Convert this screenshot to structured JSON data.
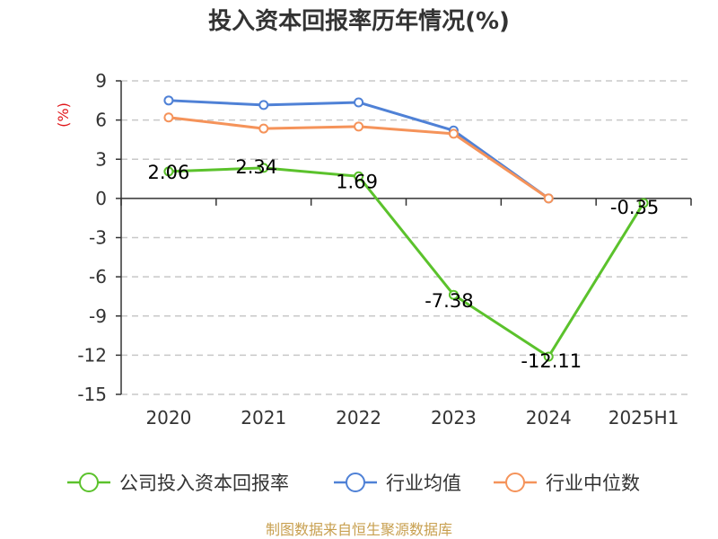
{
  "chart_data": {
    "type": "line",
    "title": "投入资本回报率历年情况(%)",
    "ylabel": "(%)",
    "categories": [
      "2020",
      "2021",
      "2022",
      "2023",
      "2024",
      "2025H1"
    ],
    "yticks": [
      9,
      6,
      3,
      0,
      -3,
      -6,
      -9,
      -12,
      -15
    ],
    "ylim": [
      -15,
      9
    ],
    "grid": true,
    "legend_position": "bottom",
    "series": [
      {
        "name": "公司投入资本回报率",
        "color": "#5bc22c",
        "values": [
          2.06,
          2.34,
          1.69,
          -7.38,
          -12.11,
          -0.35
        ],
        "labels": [
          "2.06",
          "2.34",
          "1.69",
          "-7.38",
          "-12.11",
          "-0.35"
        ]
      },
      {
        "name": "行业均值",
        "color": "#4f81d6",
        "values": [
          7.5,
          7.15,
          7.35,
          5.2,
          0.0,
          null
        ]
      },
      {
        "name": "行业中位数",
        "color": "#f5935a",
        "values": [
          6.2,
          5.35,
          5.5,
          4.95,
          0.0,
          null
        ]
      }
    ]
  },
  "source": "制图数据来自恒生聚源数据库"
}
